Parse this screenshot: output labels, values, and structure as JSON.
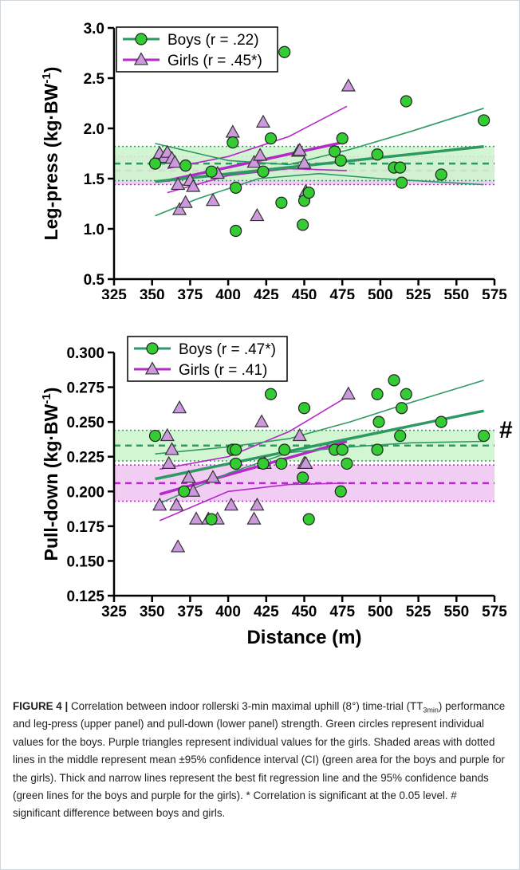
{
  "colors": {
    "boys": "#2e9a63",
    "boys_marker": "#33cc33",
    "girls": "#b628c9",
    "girls_marker": "#cc99dd",
    "boys_ci_fill": "#cdf5cd",
    "girls_ci_fill": "#efc6f2"
  },
  "chart_data": [
    {
      "type": "scatter",
      "panel": "upper",
      "ylabel": "Leg-press (kg·BW",
      "ylabel_sup": "-1",
      "ylabel_tail": ")",
      "xlabel": "",
      "xlim": [
        325,
        575
      ],
      "ylim": [
        0.5,
        3.0
      ],
      "xticks": [
        "325",
        "350",
        "375",
        "400",
        "425",
        "450",
        "475",
        "500",
        "525",
        "550",
        "575"
      ],
      "yticks": [
        "0.5",
        "1.0",
        "1.5",
        "2.0",
        "2.5",
        "3.0"
      ],
      "legend_position": "top-left",
      "annotation": "",
      "series": [
        {
          "name": "Boys (r = .22)",
          "marker": "circle",
          "x": [
            352,
            372,
            389,
            403,
            405,
            405,
            423,
            428,
            435,
            437,
            449,
            450,
            453,
            470,
            474,
            475,
            498,
            509,
            513,
            514,
            517,
            540,
            568
          ],
          "y": [
            1.65,
            1.63,
            1.57,
            1.86,
            1.41,
            0.98,
            1.57,
            1.9,
            1.26,
            2.76,
            1.04,
            1.28,
            1.36,
            1.77,
            1.68,
            1.9,
            1.74,
            1.61,
            1.61,
            1.46,
            2.27,
            1.54,
            2.08
          ],
          "mean": 1.65,
          "ci": [
            1.48,
            1.82
          ],
          "fit": [
            [
              352,
              1.47
            ],
            [
              568,
              1.82
            ]
          ],
          "band_upper": [
            [
              352,
              1.85
            ],
            [
              400,
              1.68
            ],
            [
              440,
              1.64
            ],
            [
              480,
              1.79
            ],
            [
              520,
              1.97
            ],
            [
              568,
              2.2
            ]
          ],
          "band_lower": [
            [
              352,
              1.13
            ],
            [
              380,
              1.3
            ],
            [
              420,
              1.5
            ],
            [
              460,
              1.55
            ],
            [
              500,
              1.5
            ],
            [
              568,
              1.44
            ]
          ]
        },
        {
          "name": "Girls (r = .45*)",
          "marker": "triangle",
          "x": [
            355,
            358,
            360,
            363,
            365,
            367,
            368,
            372,
            375,
            377,
            390,
            393,
            403,
            417,
            419,
            421,
            423,
            446,
            447,
            450,
            451,
            479
          ],
          "y": [
            1.75,
            1.71,
            1.76,
            1.7,
            1.66,
            1.44,
            1.19,
            1.26,
            1.48,
            1.42,
            1.28,
            1.55,
            1.96,
            1.66,
            1.13,
            1.73,
            2.06,
            1.77,
            1.78,
            1.65,
            1.37,
            2.42
          ],
          "mean": 1.58,
          "ci": [
            1.44,
            1.72
          ],
          "fit": [
            [
              360,
              1.48
            ],
            [
              478,
              1.87
            ]
          ],
          "band_upper": [
            [
              360,
              1.6
            ],
            [
              400,
              1.72
            ],
            [
              440,
              1.92
            ],
            [
              478,
              2.22
            ]
          ],
          "band_lower": [
            [
              360,
              1.36
            ],
            [
              400,
              1.53
            ],
            [
              440,
              1.6
            ],
            [
              478,
              1.58
            ]
          ]
        }
      ]
    },
    {
      "type": "scatter",
      "panel": "lower",
      "ylabel": "Pull-down (kg·BW",
      "ylabel_sup": "-1",
      "ylabel_tail": ")",
      "xlabel": "Distance (m)",
      "xlim": [
        325,
        575
      ],
      "ylim": [
        0.125,
        0.3
      ],
      "xticks": [
        "325",
        "350",
        "375",
        "400",
        "425",
        "450",
        "475",
        "500",
        "525",
        "550",
        "575"
      ],
      "yticks": [
        "0.125",
        "0.150",
        "0.175",
        "0.200",
        "0.225",
        "0.250",
        "0.275",
        "0.300"
      ],
      "legend_position": "top-left",
      "annotation": "#",
      "series": [
        {
          "name": "Boys (r = .47*)",
          "marker": "circle",
          "x": [
            352,
            371,
            389,
            403,
            405,
            405,
            423,
            428,
            435,
            437,
            449,
            450,
            453,
            470,
            474,
            475,
            478,
            498,
            498,
            499,
            509,
            513,
            514,
            517,
            540,
            568
          ],
          "y": [
            0.24,
            0.2,
            0.18,
            0.23,
            0.23,
            0.22,
            0.22,
            0.27,
            0.22,
            0.23,
            0.21,
            0.26,
            0.18,
            0.23,
            0.2,
            0.23,
            0.22,
            0.27,
            0.23,
            0.25,
            0.28,
            0.24,
            0.26,
            0.27,
            0.25,
            0.24
          ],
          "mean": 0.233,
          "ci": [
            0.222,
            0.244
          ],
          "fit": [
            [
              352,
              0.209
            ],
            [
              568,
              0.258
            ]
          ],
          "band_upper": [
            [
              352,
              0.227
            ],
            [
              400,
              0.232
            ],
            [
              440,
              0.238
            ],
            [
              480,
              0.25
            ],
            [
              520,
              0.264
            ],
            [
              568,
              0.28
            ]
          ],
          "band_lower": [
            [
              352,
              0.19
            ],
            [
              400,
              0.213
            ],
            [
              440,
              0.228
            ],
            [
              480,
              0.232
            ],
            [
              520,
              0.235
            ],
            [
              568,
              0.236
            ]
          ]
        },
        {
          "name": "Girls (r = .41)",
          "marker": "triangle",
          "x": [
            355,
            360,
            361,
            363,
            366,
            367,
            368,
            374,
            377,
            379,
            387,
            390,
            393,
            402,
            417,
            419,
            422,
            424,
            447,
            450,
            451,
            479
          ],
          "y": [
            0.19,
            0.24,
            0.22,
            0.23,
            0.19,
            0.16,
            0.26,
            0.21,
            0.2,
            0.18,
            0.18,
            0.21,
            0.18,
            0.19,
            0.18,
            0.19,
            0.25,
            0.22,
            0.24,
            0.22,
            0.22,
            0.27
          ],
          "mean": 0.206,
          "ci": [
            0.193,
            0.219
          ],
          "fit": [
            [
              355,
              0.198
            ],
            [
              478,
              0.236
            ]
          ],
          "band_upper": [
            [
              355,
              0.216
            ],
            [
              400,
              0.225
            ],
            [
              440,
              0.243
            ],
            [
              478,
              0.268
            ]
          ],
          "band_lower": [
            [
              355,
              0.179
            ],
            [
              400,
              0.2
            ],
            [
              440,
              0.205
            ],
            [
              478,
              0.206
            ]
          ]
        }
      ]
    }
  ],
  "caption": {
    "lead": "FIGURE 4 |",
    "part1": " Correlation between indoor rollerski 3-min maximal uphill (8°) time-trial (TT",
    "sub": "3min",
    "part2": ") performance and leg-press (upper panel) and pull-down (lower panel) strength. Green circles represent individual values for the boys. Purple triangles represent individual values for the girls. Shaded areas with dotted lines in the middle represent mean ±95% confidence interval (CI) (green area for the boys and purple for the girls). Thick and narrow lines represent the best fit regression line and the 95% confidence bands (green lines for the boys and purple for the girls). * Correlation is significant at the 0.05 level. # significant difference between boys and girls."
  }
}
